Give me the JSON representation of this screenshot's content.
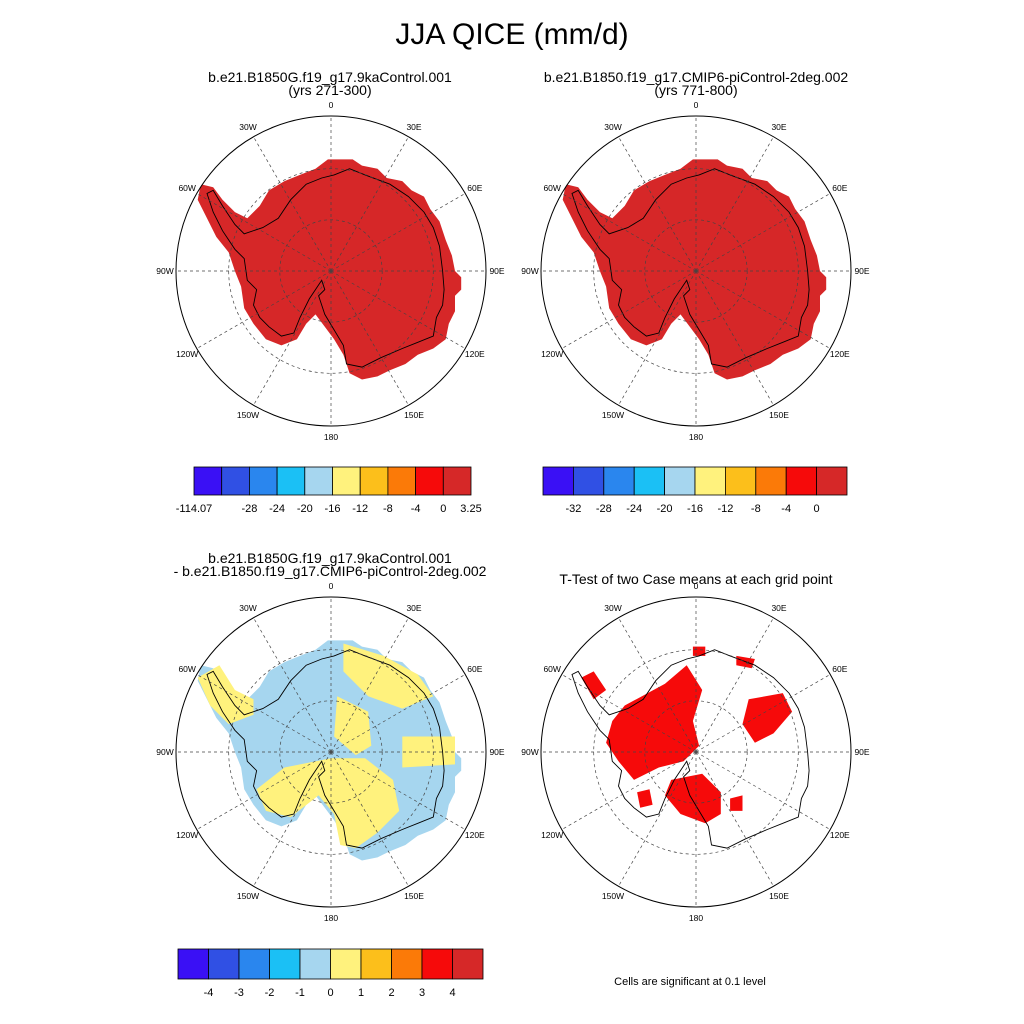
{
  "title": "JJA QICE (mm/d)",
  "panels": [
    {
      "title_line1": "b.e21.B1850G.f19_g17.9kaControl.001",
      "title_line2": "(yrs 271-300)",
      "fill": "#d62728"
    },
    {
      "title_line1": "b.e21.B1850.f19_g17.CMIP6-piControl-2deg.002",
      "title_line2": "(yrs 771-800)",
      "fill": "#d62728"
    },
    {
      "title_line1": "b.e21.B1850G.f19_g17.9kaControl.001",
      "title_line2": "- b.e21.B1850.f19_g17.CMIP6-piControl-2deg.002"
    },
    {
      "title_line1": "T-Test of two Case means at each grid point",
      "title_line2": ""
    }
  ],
  "lon_labels": [
    "0",
    "30E",
    "60E",
    "90E",
    "120E",
    "150E",
    "180",
    "150W",
    "120W",
    "90W",
    "60W",
    "30W"
  ],
  "colorbars": [
    {
      "colors": [
        "#3a10f5",
        "#3050e4",
        "#2a86ee",
        "#1bc0f5",
        "#a6d6ef",
        "#fff27d",
        "#fcbf1b",
        "#fb7a08",
        "#f60a0a",
        "#d62828"
      ],
      "labels": [
        "-114.07",
        "-28",
        "-24",
        "-20",
        "-16",
        "-12",
        "-8",
        "-4",
        "0",
        "3.25"
      ],
      "label_pos": [
        0,
        2,
        3,
        4,
        5,
        6,
        7,
        8,
        9,
        10
      ]
    },
    {
      "colors": [
        "#3a10f5",
        "#3050e4",
        "#2a86ee",
        "#1bc0f5",
        "#a6d6ef",
        "#fff27d",
        "#fcbf1b",
        "#fb7a08",
        "#f60a0a",
        "#d62828"
      ],
      "labels": [
        "-32",
        "-28",
        "-24",
        "-20",
        "-16",
        "-12",
        "-8",
        "-4",
        "0"
      ],
      "label_pos": [
        1,
        2,
        3,
        4,
        5,
        6,
        7,
        8,
        9
      ]
    },
    {
      "colors": [
        "#3a10f5",
        "#3050e4",
        "#2a86ee",
        "#1bc0f5",
        "#a6d6ef",
        "#fff27d",
        "#fcbf1b",
        "#fb7a08",
        "#f60a0a",
        "#d62828"
      ],
      "labels": [
        "-4",
        "-3",
        "-2",
        "-1",
        "0",
        "1",
        "2",
        "3",
        "4"
      ],
      "label_pos": [
        1,
        2,
        3,
        4,
        5,
        6,
        7,
        8,
        9
      ]
    }
  ],
  "difference_colors": {
    "negative": "#a6d6ef",
    "positive": "#fff27d"
  },
  "significance_color": "#f60a0a",
  "note": "Cells are significant at 0.1 level"
}
